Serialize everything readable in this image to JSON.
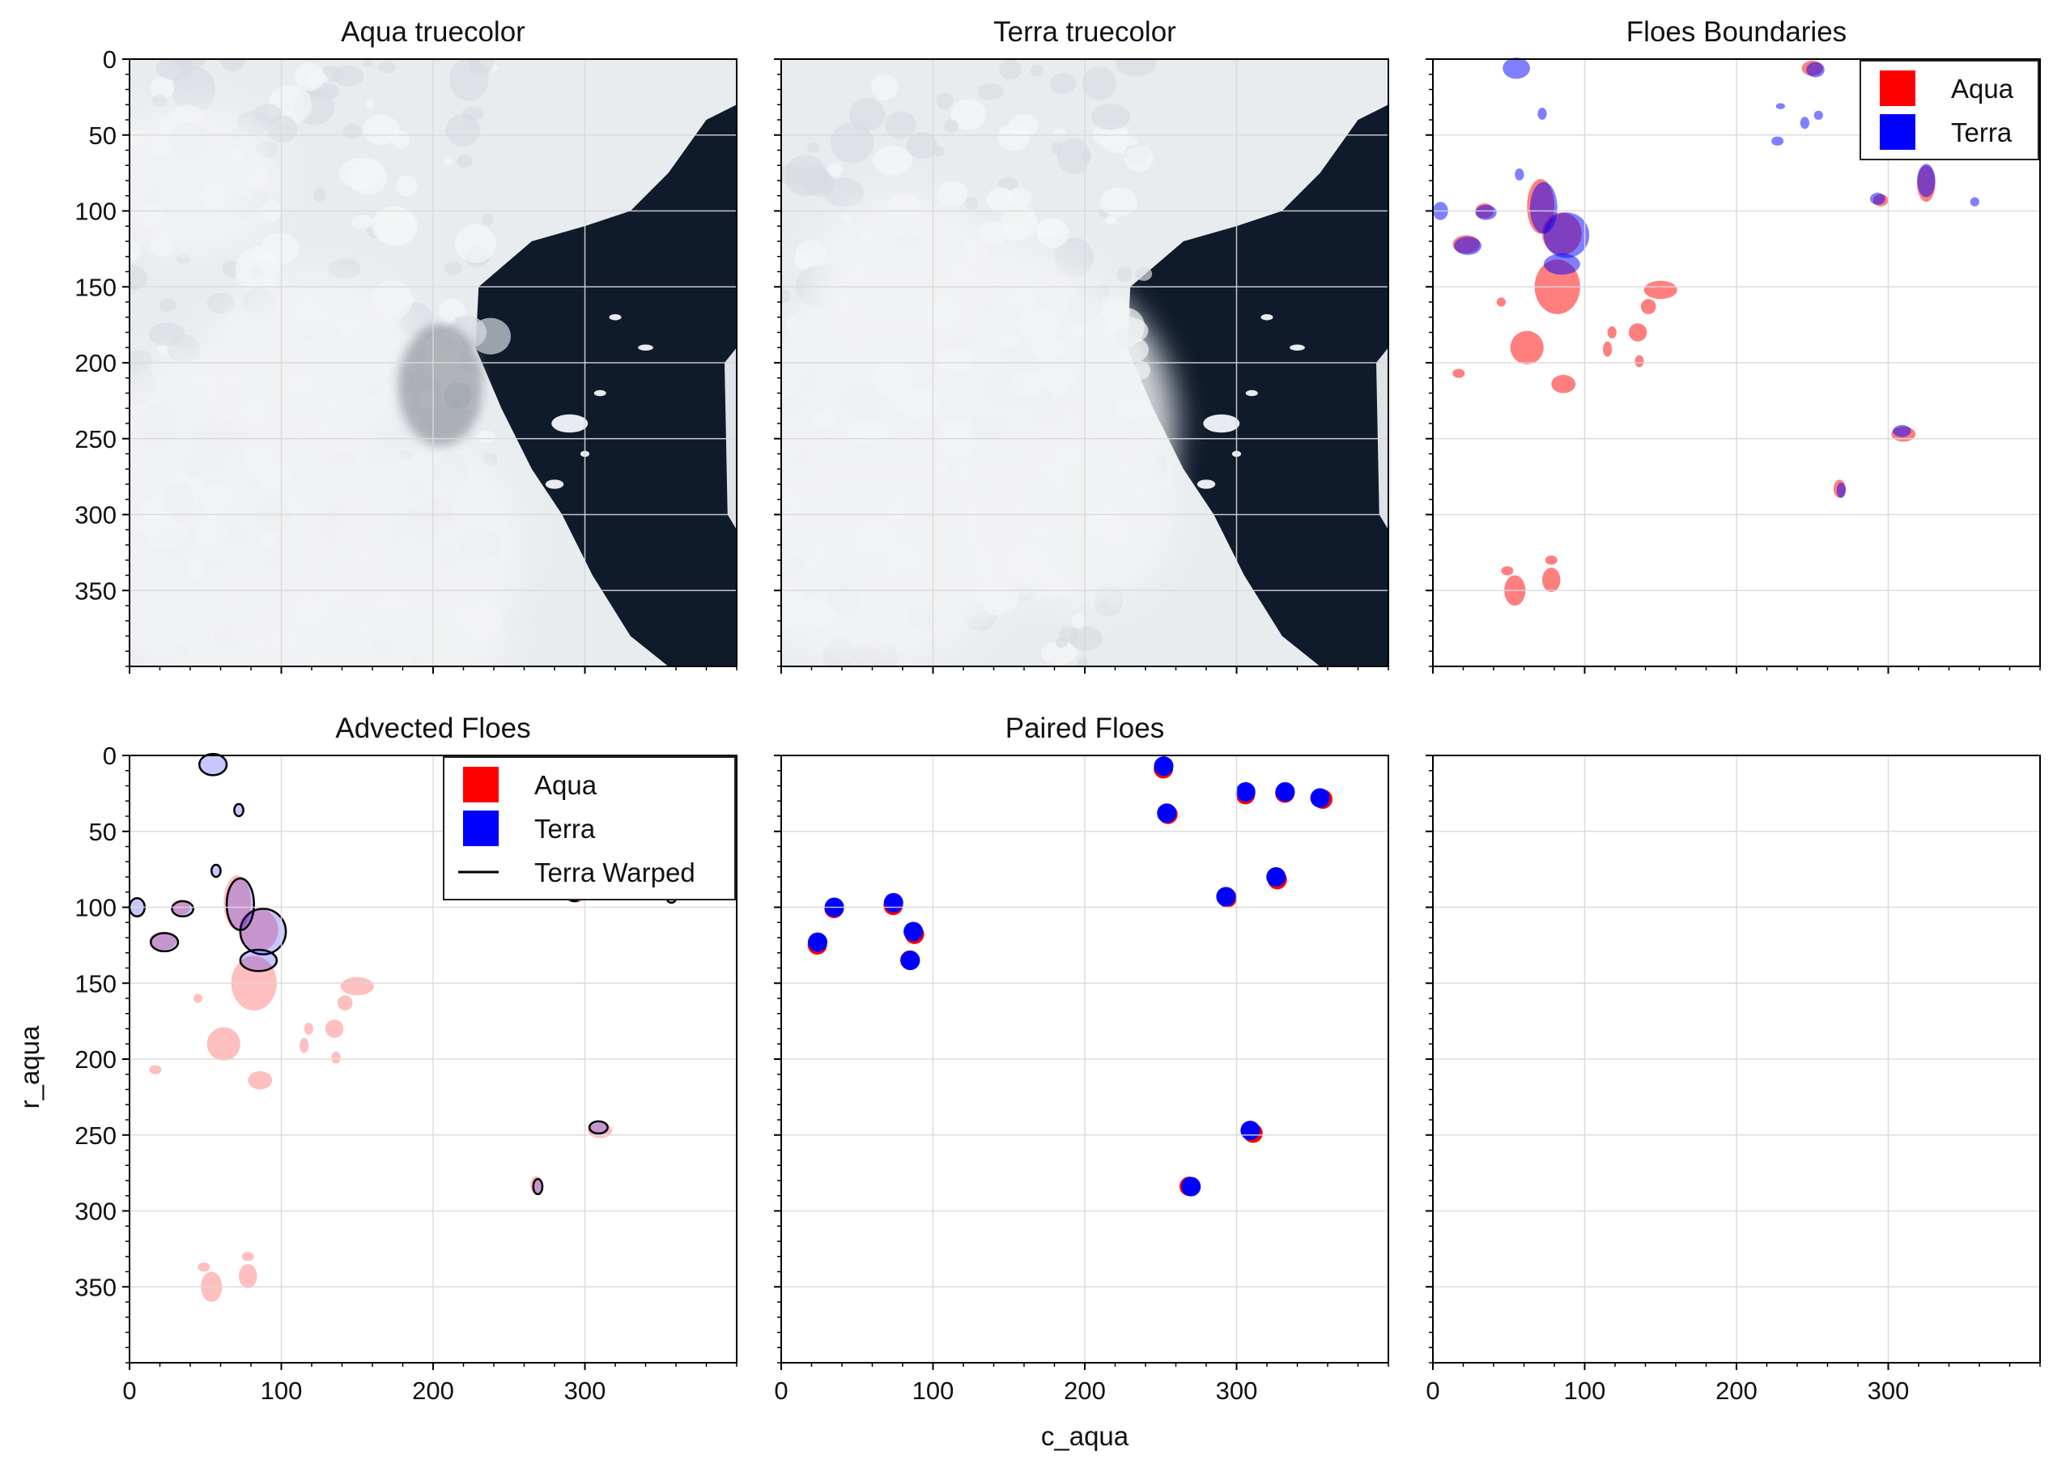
{
  "figure": {
    "xlabel": "c_aqua",
    "ylabel": "r_aqua",
    "colors": {
      "aqua": "#ff0000",
      "terra": "#0000ff",
      "sea": "#0f1a2b",
      "ice": "#e9ecef",
      "cloud": "#f2f3f5",
      "grid": "#d9d9d9"
    }
  },
  "chart_data": [
    {
      "panel": "aqua-truecolor",
      "type": "image",
      "title": "Aqua truecolor",
      "xlim": [
        0,
        400
      ],
      "ylim": [
        400,
        0
      ],
      "y_ticks": [
        0,
        50,
        100,
        150,
        200,
        250,
        300,
        350
      ]
    },
    {
      "panel": "terra-truecolor",
      "type": "image",
      "title": "Terra truecolor",
      "xlim": [
        0,
        400
      ],
      "ylim": [
        400,
        0
      ]
    },
    {
      "panel": "floes-boundaries",
      "type": "image",
      "title": "Floes Boundaries",
      "xlim": [
        0,
        400
      ],
      "ylim": [
        400,
        0
      ],
      "legend": {
        "placement": "top-right",
        "entries": [
          "Aqua",
          "Terra"
        ]
      },
      "floes": {
        "aqua": [
          [
            82,
            150,
            15,
            18
          ],
          [
            62,
            190,
            11,
            11
          ],
          [
            86,
            214,
            8,
            6
          ],
          [
            150,
            152,
            11,
            6
          ],
          [
            142,
            163,
            5,
            5
          ],
          [
            135,
            180,
            6,
            6
          ],
          [
            45,
            160,
            3,
            3
          ],
          [
            17,
            207,
            4,
            3
          ],
          [
            118,
            180,
            3,
            4
          ],
          [
            54,
            350,
            7,
            10
          ],
          [
            78,
            343,
            6,
            8
          ],
          [
            49,
            337,
            4,
            3
          ],
          [
            78,
            330,
            4,
            3
          ],
          [
            310,
            247,
            8,
            5
          ],
          [
            268,
            283,
            4,
            6
          ],
          [
            295,
            93,
            5,
            4
          ],
          [
            250,
            6,
            7,
            5
          ],
          [
            325,
            82,
            6,
            12
          ],
          [
            355,
            30,
            4,
            4
          ],
          [
            85,
            115,
            13,
            14
          ],
          [
            71,
            97,
            9,
            18
          ],
          [
            34,
            100,
            6,
            5
          ],
          [
            22,
            122,
            9,
            6
          ],
          [
            115,
            191,
            3,
            5
          ],
          [
            136,
            199,
            3,
            4
          ]
        ],
        "terra": [
          [
            88,
            116,
            15,
            15
          ],
          [
            73,
            98,
            9,
            17
          ],
          [
            35,
            101,
            7,
            5
          ],
          [
            23,
            123,
            9,
            6
          ],
          [
            5,
            100,
            5,
            6
          ],
          [
            85,
            135,
            12,
            7
          ],
          [
            55,
            6,
            9,
            7
          ],
          [
            72,
            36,
            3,
            4
          ],
          [
            309,
            245,
            6,
            4
          ],
          [
            269,
            284,
            3,
            5
          ],
          [
            293,
            92,
            5,
            4
          ],
          [
            252,
            7,
            6,
            5
          ],
          [
            254,
            37,
            3,
            3
          ],
          [
            325,
            80,
            6,
            11
          ],
          [
            333,
            25,
            6,
            6
          ],
          [
            307,
            26,
            5,
            6
          ],
          [
            229,
            31,
            3,
            2
          ],
          [
            227,
            54,
            4,
            3
          ],
          [
            245,
            42,
            3,
            4
          ],
          [
            356,
            27,
            4,
            4
          ],
          [
            357,
            94,
            3,
            3
          ],
          [
            318,
            52,
            3,
            4
          ],
          [
            57,
            76,
            3,
            4
          ]
        ]
      }
    },
    {
      "panel": "advected-floes",
      "type": "image",
      "title": "Advected Floes",
      "xlim": [
        0,
        400
      ],
      "ylim": [
        400,
        0
      ],
      "y_ticks": [
        0,
        50,
        100,
        150,
        200,
        250,
        300,
        350
      ],
      "x_ticks": [
        0,
        100,
        200,
        300
      ],
      "legend": {
        "placement": "top-right",
        "entries": [
          "Aqua",
          "Terra",
          "Terra Warped"
        ]
      }
    },
    {
      "panel": "paired-floes",
      "type": "scatter",
      "title": "Paired Floes",
      "xlim": [
        0,
        400
      ],
      "ylim": [
        400,
        0
      ],
      "x_ticks": [
        0,
        100,
        200,
        300
      ],
      "series": [
        {
          "name": "Aqua",
          "x": [
            251,
            254,
            305,
            331,
            356,
            326,
            293,
            73,
            34,
            23,
            87,
            84,
            310,
            268
          ],
          "y": [
            8,
            38,
            25,
            24,
            28,
            81,
            93,
            98,
            100,
            124,
            117,
            134,
            248,
            283
          ]
        },
        {
          "name": "Terra",
          "x": [
            252,
            254,
            306,
            332,
            355,
            326,
            293,
            74,
            35,
            24,
            87,
            85,
            309,
            270
          ],
          "y": [
            7,
            38,
            24,
            24,
            28,
            80,
            93,
            97,
            100,
            123,
            116,
            135,
            247,
            284
          ]
        }
      ]
    },
    {
      "panel": "empty",
      "type": "scatter",
      "title": "",
      "xlim": [
        0,
        400
      ],
      "ylim": [
        400,
        0
      ],
      "x_ticks": [
        0,
        100,
        200,
        300
      ]
    }
  ]
}
